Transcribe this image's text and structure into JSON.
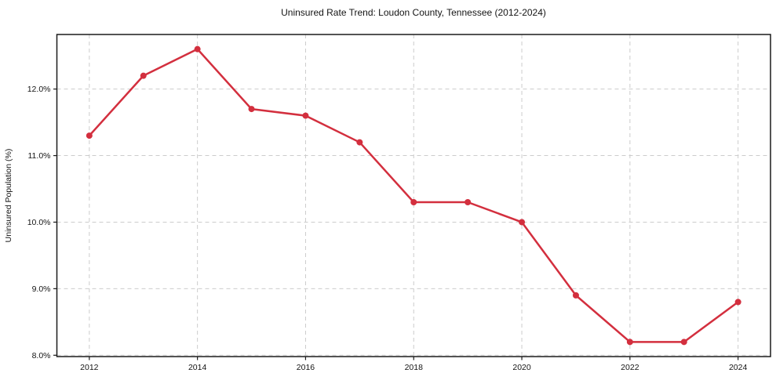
{
  "figure": {
    "background_color": "#ffffff"
  },
  "chart_data": {
    "type": "line",
    "title": "Uninsured Rate Trend: Loudon County, Tennessee (2012-2024)",
    "xlabel": "",
    "ylabel": "Uninsured Population (%)",
    "x": [
      2012,
      2013,
      2014,
      2015,
      2016,
      2017,
      2018,
      2019,
      2020,
      2021,
      2022,
      2023,
      2024
    ],
    "values": [
      11.3,
      12.2,
      12.6,
      11.7,
      11.6,
      11.2,
      10.3,
      10.3,
      10.0,
      8.9,
      8.2,
      8.2,
      8.8
    ],
    "series_name": "Uninsured rate",
    "x_tick_values": [
      2012,
      2014,
      2016,
      2018,
      2020,
      2022,
      2024
    ],
    "x_tick_labels": [
      "2012",
      "2014",
      "2016",
      "2018",
      "2020",
      "2022",
      "2024"
    ],
    "y_tick_values": [
      8,
      9,
      10,
      11,
      12
    ],
    "y_tick_labels": [
      "8.0%",
      "9.0%",
      "10.0%",
      "11.0%",
      "12.0%"
    ],
    "xlim": [
      2011.4,
      2024.6
    ],
    "ylim": [
      7.98,
      12.82
    ],
    "grid": true,
    "grid_style": "dashed",
    "legend": false,
    "line_color": "#d32f3e",
    "marker": "o",
    "grid_color": "#cccccc",
    "spine_color": "#1a1a1a",
    "text_color": "#141414"
  }
}
